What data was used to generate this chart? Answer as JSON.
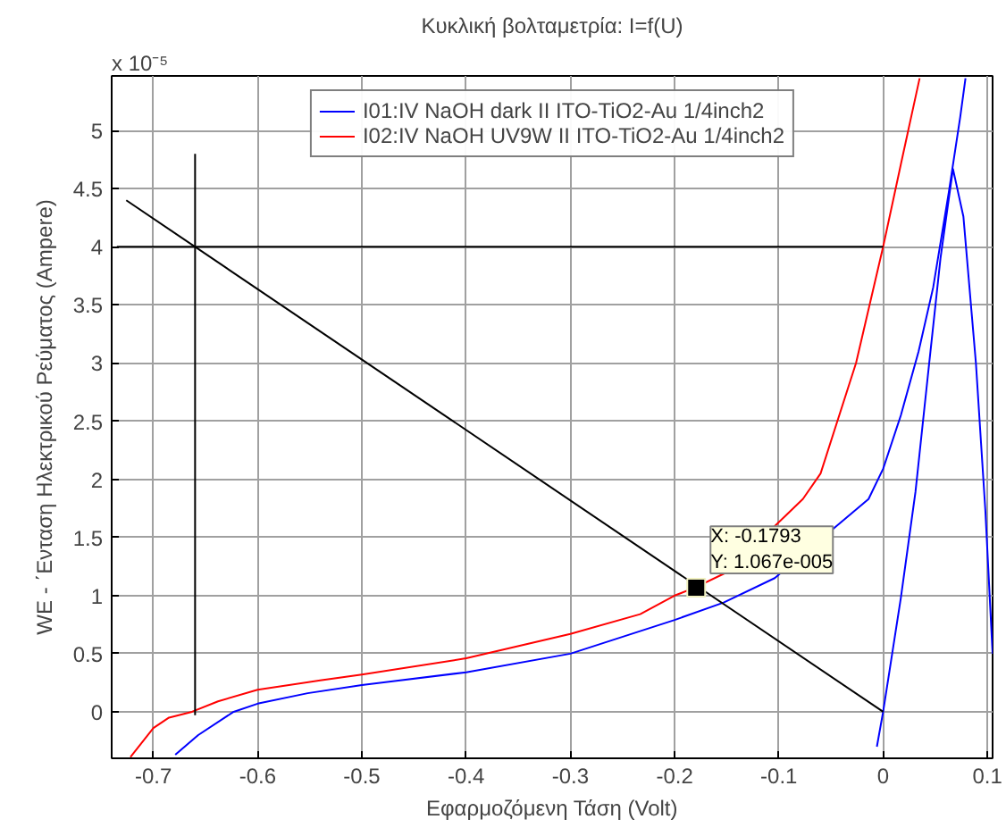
{
  "chart_data": {
    "type": "line",
    "title": "Κυκλική βολταμετρία: I=f(U)",
    "xlabel": "Εφαρμοζόμενη Τάση (Volt)",
    "ylabel": "WE - ΄Ενταση Ηλεκτρικού Ρεύματος (Ampere)",
    "xlim": [
      -0.74,
      0.105
    ],
    "ylim": [
      -0.4,
      5.47
    ],
    "xticks": [
      -0.7,
      -0.6,
      -0.5,
      -0.4,
      -0.3,
      -0.2,
      -0.1,
      0,
      0.1
    ],
    "yticks": [
      0,
      0.5,
      1,
      1.5,
      2,
      2.5,
      3,
      3.5,
      4,
      4.5,
      5
    ],
    "grid": true,
    "legend": "top",
    "marker": "none",
    "line_style": "solid",
    "series": [
      {
        "name": "I01:IV NaOH dark II ITO-TiO2-Au 1/4inch2",
        "color": "#0000ff",
        "x": [
          -0.679,
          -0.657,
          -0.623,
          -0.6,
          -0.552,
          -0.5,
          -0.4,
          -0.3,
          -0.2,
          -0.153,
          -0.104,
          -0.014,
          0,
          0.017,
          0.034,
          0.048,
          0.063,
          0.074,
          0.079,
          null,
          -0.006,
          0,
          0.017,
          0.031,
          0.043,
          0.055,
          0.067,
          0.077,
          0.089,
          0.098,
          0.105
        ],
        "values": [
          -0.37,
          -0.2,
          0,
          0.07,
          0.16,
          0.23,
          0.34,
          0.5,
          0.79,
          0.94,
          1.15,
          1.83,
          2.09,
          2.55,
          3.1,
          3.65,
          4.47,
          5.12,
          5.45,
          null,
          -0.3,
          0,
          0.98,
          1.89,
          2.9,
          3.9,
          4.67,
          4.26,
          3.0,
          1.74,
          0.5
        ]
      },
      {
        "name": "I02:IV NaOH UV9W II ITO-TiO2-Au 1/4inch2",
        "color": "#ff0000",
        "x": [
          -0.722,
          -0.7,
          -0.685,
          -0.663,
          -0.638,
          -0.6,
          -0.54,
          -0.5,
          -0.4,
          -0.3,
          -0.233,
          -0.2,
          -0.18,
          -0.15,
          -0.077,
          -0.06,
          -0.026,
          0,
          0.017,
          0.035
        ],
        "values": [
          -0.39,
          -0.14,
          -0.05,
          0,
          0.09,
          0.19,
          0.27,
          0.32,
          0.46,
          0.67,
          0.84,
          1.0,
          1.07,
          1.2,
          1.83,
          2.05,
          3.0,
          4.0,
          4.71,
          5.45
        ]
      },
      {
        "color": "#000000",
        "x": [
          -0.726,
          0
        ],
        "values": [
          4.4,
          0
        ]
      },
      {
        "color": "#000000",
        "x": [
          -0.735,
          0
        ],
        "values": [
          4,
          4
        ]
      },
      {
        "color": "#000000",
        "x": [
          -0.66,
          -0.66
        ],
        "values": [
          -0.03,
          4.8
        ]
      },
      {
        "type": "scatter",
        "marker": "square",
        "color": "#000000",
        "x": [
          -0.1793
        ],
        "values": [
          1.067
        ]
      }
    ],
    "annotations": [
      "x 10⁻⁵",
      {
        "text": "X: -0.1793\nY: 1.067e-005",
        "x": -0.1793,
        "y": 1.067
      }
    ]
  }
}
